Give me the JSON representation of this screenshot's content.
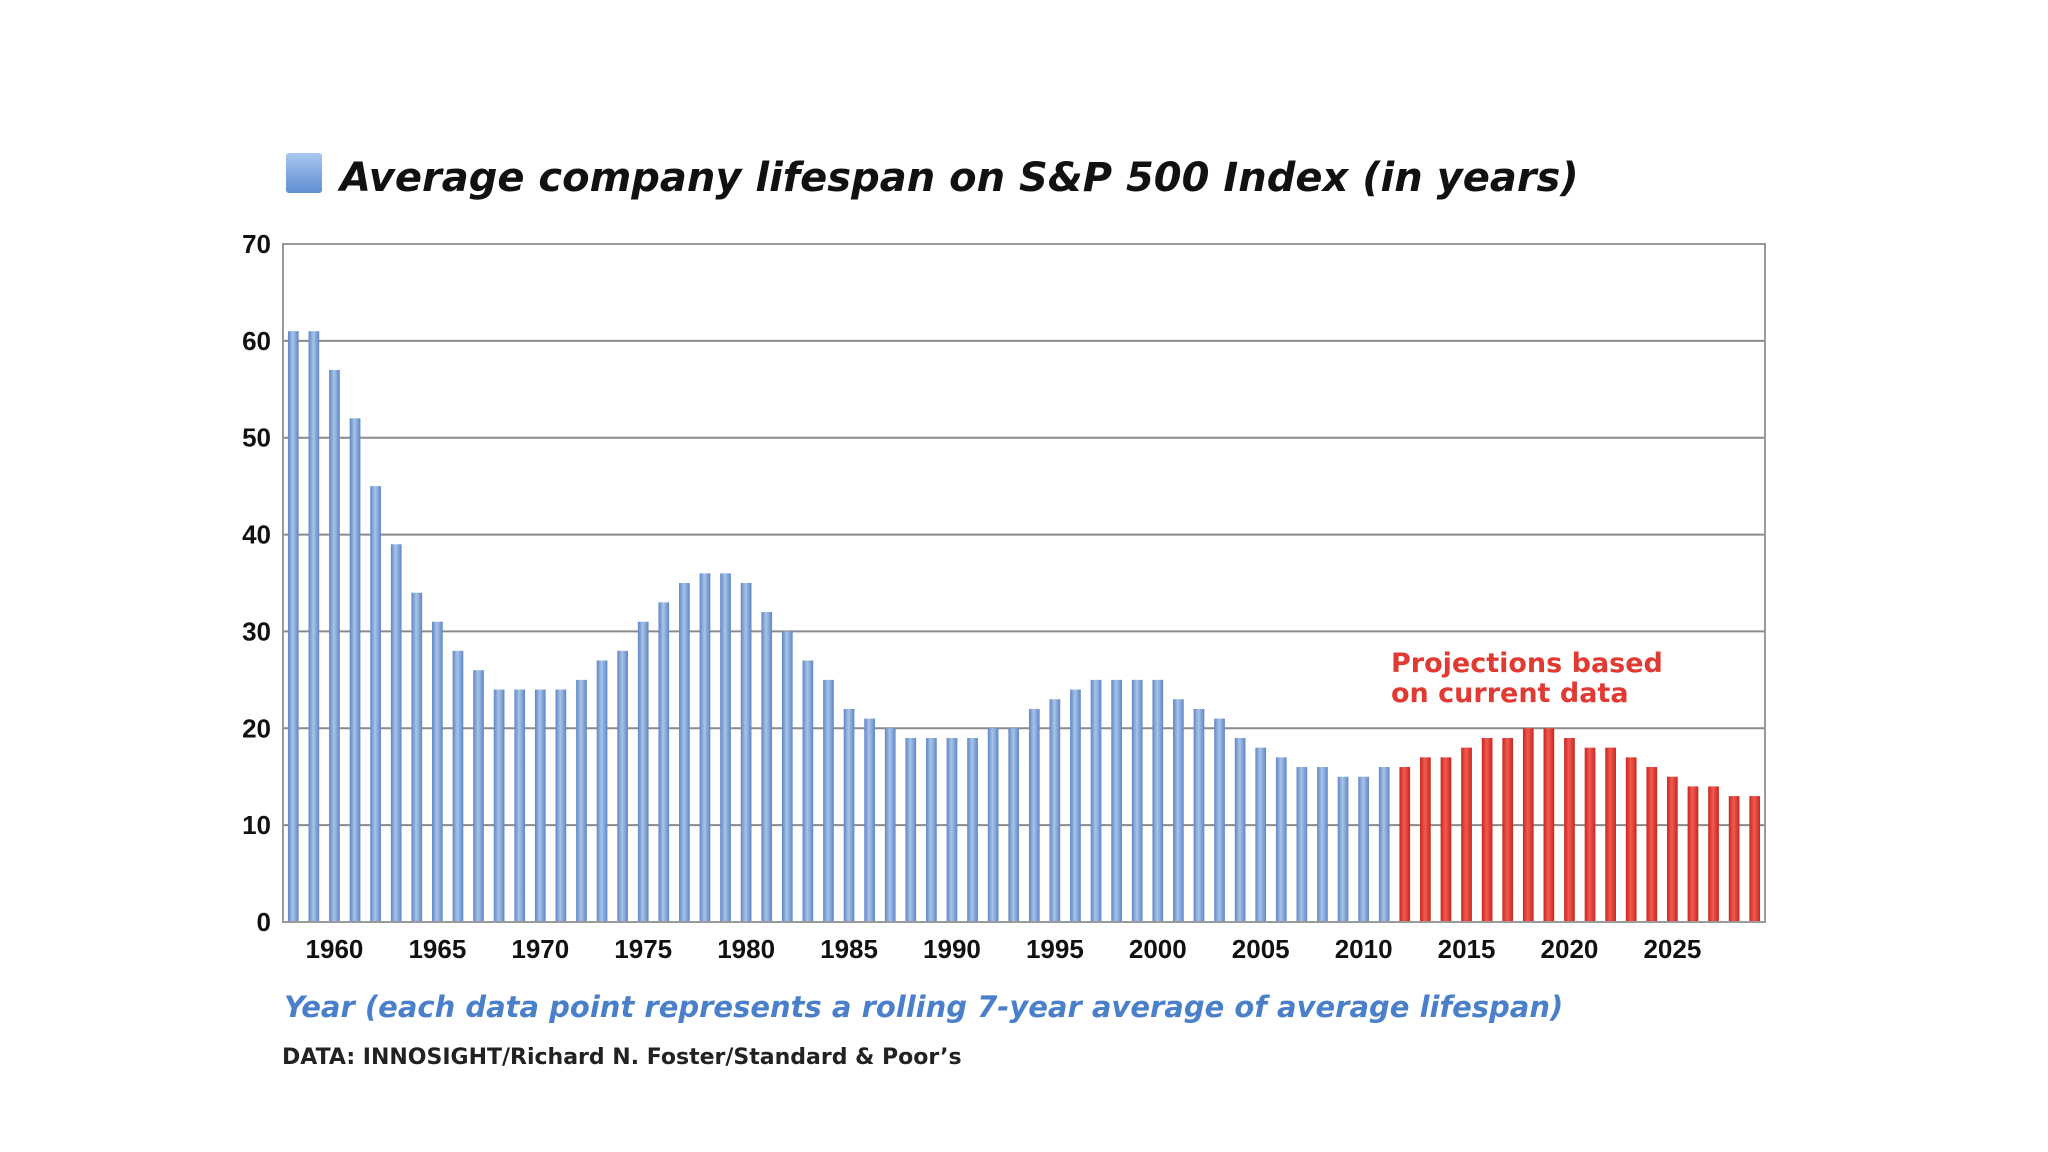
{
  "chart_data": {
    "type": "bar",
    "title": "Average company lifespan on S&P 500 Index (in years)",
    "xlabel": "Year (each data point represents a rolling 7-year average of average lifespan)",
    "ylabel": "",
    "source": "DATA: INNOSIGHT/Richard N. Foster/Standard & Poor’s",
    "ylim": [
      0,
      70
    ],
    "yticks": [
      0,
      10,
      20,
      30,
      40,
      50,
      60,
      70
    ],
    "xticks": [
      1960,
      1965,
      1970,
      1975,
      1980,
      1985,
      1990,
      1995,
      2000,
      2005,
      2010,
      2015,
      2020,
      2025
    ],
    "x_start": 1958,
    "x_end": 2029,
    "grid": true,
    "legend": "top-left",
    "series": [
      {
        "name": "Average company lifespan on S&P 500 Index (in years)",
        "color": "#7B9ED3",
        "x": [
          1958,
          1959,
          1960,
          1961,
          1962,
          1963,
          1964,
          1965,
          1966,
          1967,
          1968,
          1969,
          1970,
          1971,
          1972,
          1973,
          1974,
          1975,
          1976,
          1977,
          1978,
          1979,
          1980,
          1981,
          1982,
          1983,
          1984,
          1985,
          1986,
          1987,
          1988,
          1989,
          1990,
          1991,
          1992,
          1993,
          1994,
          1995,
          1996,
          1997,
          1998,
          1999,
          2000,
          2001,
          2002,
          2003,
          2004,
          2005,
          2006,
          2007,
          2008,
          2009,
          2010,
          2011
        ],
        "values": [
          61,
          61,
          57,
          52,
          45,
          39,
          34,
          31,
          28,
          26,
          24,
          24,
          24,
          24,
          25,
          27,
          28,
          31,
          33,
          35,
          36,
          36,
          35,
          32,
          30,
          27,
          25,
          22,
          21,
          20,
          19,
          19,
          19,
          19,
          20,
          20,
          22,
          23,
          24,
          25,
          25,
          25,
          25,
          23,
          22,
          21,
          19,
          18,
          17,
          16,
          16,
          15,
          15,
          16
        ]
      },
      {
        "name": "Projections based on current data",
        "color": "#E03A33",
        "x": [
          2012,
          2013,
          2014,
          2015,
          2016,
          2017,
          2018,
          2019,
          2020,
          2021,
          2022,
          2023,
          2024,
          2025,
          2026,
          2027,
          2028,
          2029
        ],
        "values": [
          16,
          17,
          17,
          18,
          19,
          19,
          20,
          20,
          19,
          18,
          18,
          17,
          16,
          15,
          14,
          14,
          13,
          13
        ]
      }
    ],
    "annotations": [
      {
        "text": "Projections based",
        "color": "#E03A33"
      },
      {
        "text": "on current data",
        "color": "#E03A33"
      }
    ]
  },
  "colors": {
    "grid": "#8A8A8A",
    "legend_swatch": "#7FA9DE",
    "xlabel": "#4A7FC9",
    "projection": "#E03A33",
    "history": "#7B9ED3"
  }
}
